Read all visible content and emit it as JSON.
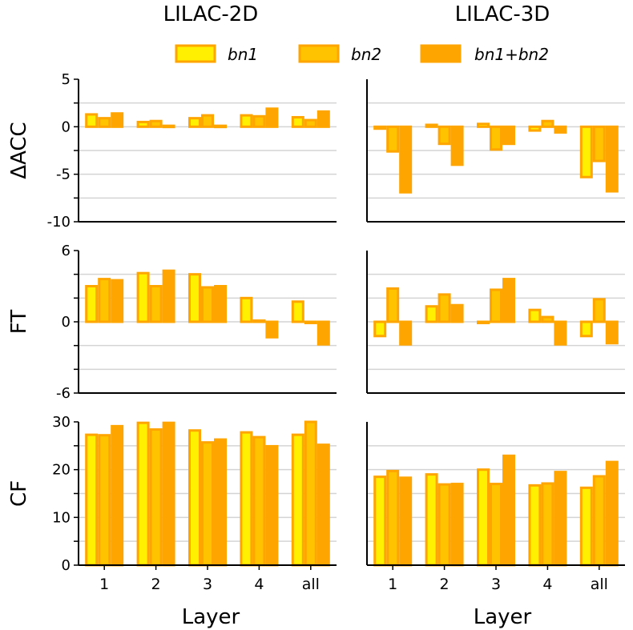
{
  "legend": {
    "entries": [
      {
        "label": "bn1",
        "color": "#ffef00",
        "edge": "#ffa500"
      },
      {
        "label": "bn2",
        "color": "#ffc300",
        "edge": "#ffa500"
      },
      {
        "label": "bn1+bn2",
        "color": "#ffa500",
        "edge": "#ffa500"
      }
    ]
  },
  "xlabel": "Layer",
  "chart_data": [
    {
      "type": "bar",
      "id": "acc-2d",
      "title": "LILAC-2D",
      "ylabel": "ΔACC",
      "xlabel": "Layer",
      "categories": [
        "1",
        "2",
        "3",
        "4",
        "all"
      ],
      "ylim": [
        -10,
        5
      ],
      "yticks": [
        "5",
        "0",
        "-5",
        "-10"
      ],
      "series": [
        {
          "name": "bn1",
          "values": [
            1.3,
            0.5,
            0.9,
            1.2,
            1.0
          ]
        },
        {
          "name": "bn2",
          "values": [
            0.9,
            0.6,
            1.2,
            1.1,
            0.7
          ]
        },
        {
          "name": "bn1+bn2",
          "values": [
            1.4,
            0.1,
            0.1,
            1.9,
            1.6
          ]
        }
      ]
    },
    {
      "type": "bar",
      "id": "acc-3d",
      "title": "LILAC-3D",
      "ylabel": "",
      "xlabel": "Layer",
      "categories": [
        "1",
        "2",
        "3",
        "4",
        "all"
      ],
      "ylim": [
        -10,
        5
      ],
      "yticks": [],
      "series": [
        {
          "name": "bn1",
          "values": [
            -0.2,
            0.2,
            0.3,
            -0.4,
            -5.3
          ]
        },
        {
          "name": "bn2",
          "values": [
            -2.6,
            -1.8,
            -2.4,
            0.6,
            -3.6
          ]
        },
        {
          "name": "bn1+bn2",
          "values": [
            -6.9,
            -4.0,
            -1.8,
            -0.6,
            -6.8
          ]
        }
      ]
    },
    {
      "type": "bar",
      "id": "ft-2d",
      "title": "",
      "ylabel": "FT",
      "xlabel": "Layer",
      "categories": [
        "1",
        "2",
        "3",
        "4",
        "all"
      ],
      "ylim": [
        -6,
        6
      ],
      "yticks": [
        "6",
        "0",
        "-6"
      ],
      "series": [
        {
          "name": "bn1",
          "values": [
            3.0,
            4.1,
            4.0,
            2.0,
            1.7
          ]
        },
        {
          "name": "bn2",
          "values": [
            3.6,
            3.0,
            2.9,
            0.1,
            -0.1
          ]
        },
        {
          "name": "bn1+bn2",
          "values": [
            3.5,
            4.3,
            3.0,
            -1.3,
            -1.9
          ]
        }
      ]
    },
    {
      "type": "bar",
      "id": "ft-3d",
      "title": "",
      "ylabel": "",
      "xlabel": "Layer",
      "categories": [
        "1",
        "2",
        "3",
        "4",
        "all"
      ],
      "ylim": [
        -6,
        6
      ],
      "yticks": [],
      "series": [
        {
          "name": "bn1",
          "values": [
            -1.2,
            1.3,
            -0.1,
            1.0,
            -1.2
          ]
        },
        {
          "name": "bn2",
          "values": [
            2.8,
            2.3,
            2.7,
            0.4,
            1.9
          ]
        },
        {
          "name": "bn1+bn2",
          "values": [
            -1.9,
            1.4,
            3.6,
            -1.9,
            -1.8
          ]
        }
      ]
    },
    {
      "type": "bar",
      "id": "cf-2d",
      "title": "",
      "ylabel": "CF",
      "xlabel": "Layer",
      "categories": [
        "1",
        "2",
        "3",
        "4",
        "all"
      ],
      "ylim": [
        0,
        30
      ],
      "yticks": [
        "30",
        "20",
        "10",
        "0"
      ],
      "series": [
        {
          "name": "bn1",
          "values": [
            27.3,
            29.8,
            28.2,
            27.8,
            27.3
          ]
        },
        {
          "name": "bn2",
          "values": [
            27.2,
            28.4,
            25.7,
            26.8,
            30.0
          ]
        },
        {
          "name": "bn1+bn2",
          "values": [
            29.1,
            29.8,
            26.3,
            24.9,
            25.2
          ]
        }
      ]
    },
    {
      "type": "bar",
      "id": "cf-3d",
      "title": "",
      "ylabel": "",
      "xlabel": "Layer",
      "categories": [
        "1",
        "2",
        "3",
        "4",
        "all"
      ],
      "ylim": [
        0,
        30
      ],
      "yticks": [],
      "series": [
        {
          "name": "bn1",
          "values": [
            18.5,
            19.0,
            20.0,
            16.7,
            16.2
          ]
        },
        {
          "name": "bn2",
          "values": [
            19.7,
            16.9,
            17.0,
            17.1,
            18.6
          ]
        },
        {
          "name": "bn1+bn2",
          "values": [
            18.3,
            17.0,
            22.9,
            19.5,
            21.6
          ]
        }
      ]
    }
  ]
}
